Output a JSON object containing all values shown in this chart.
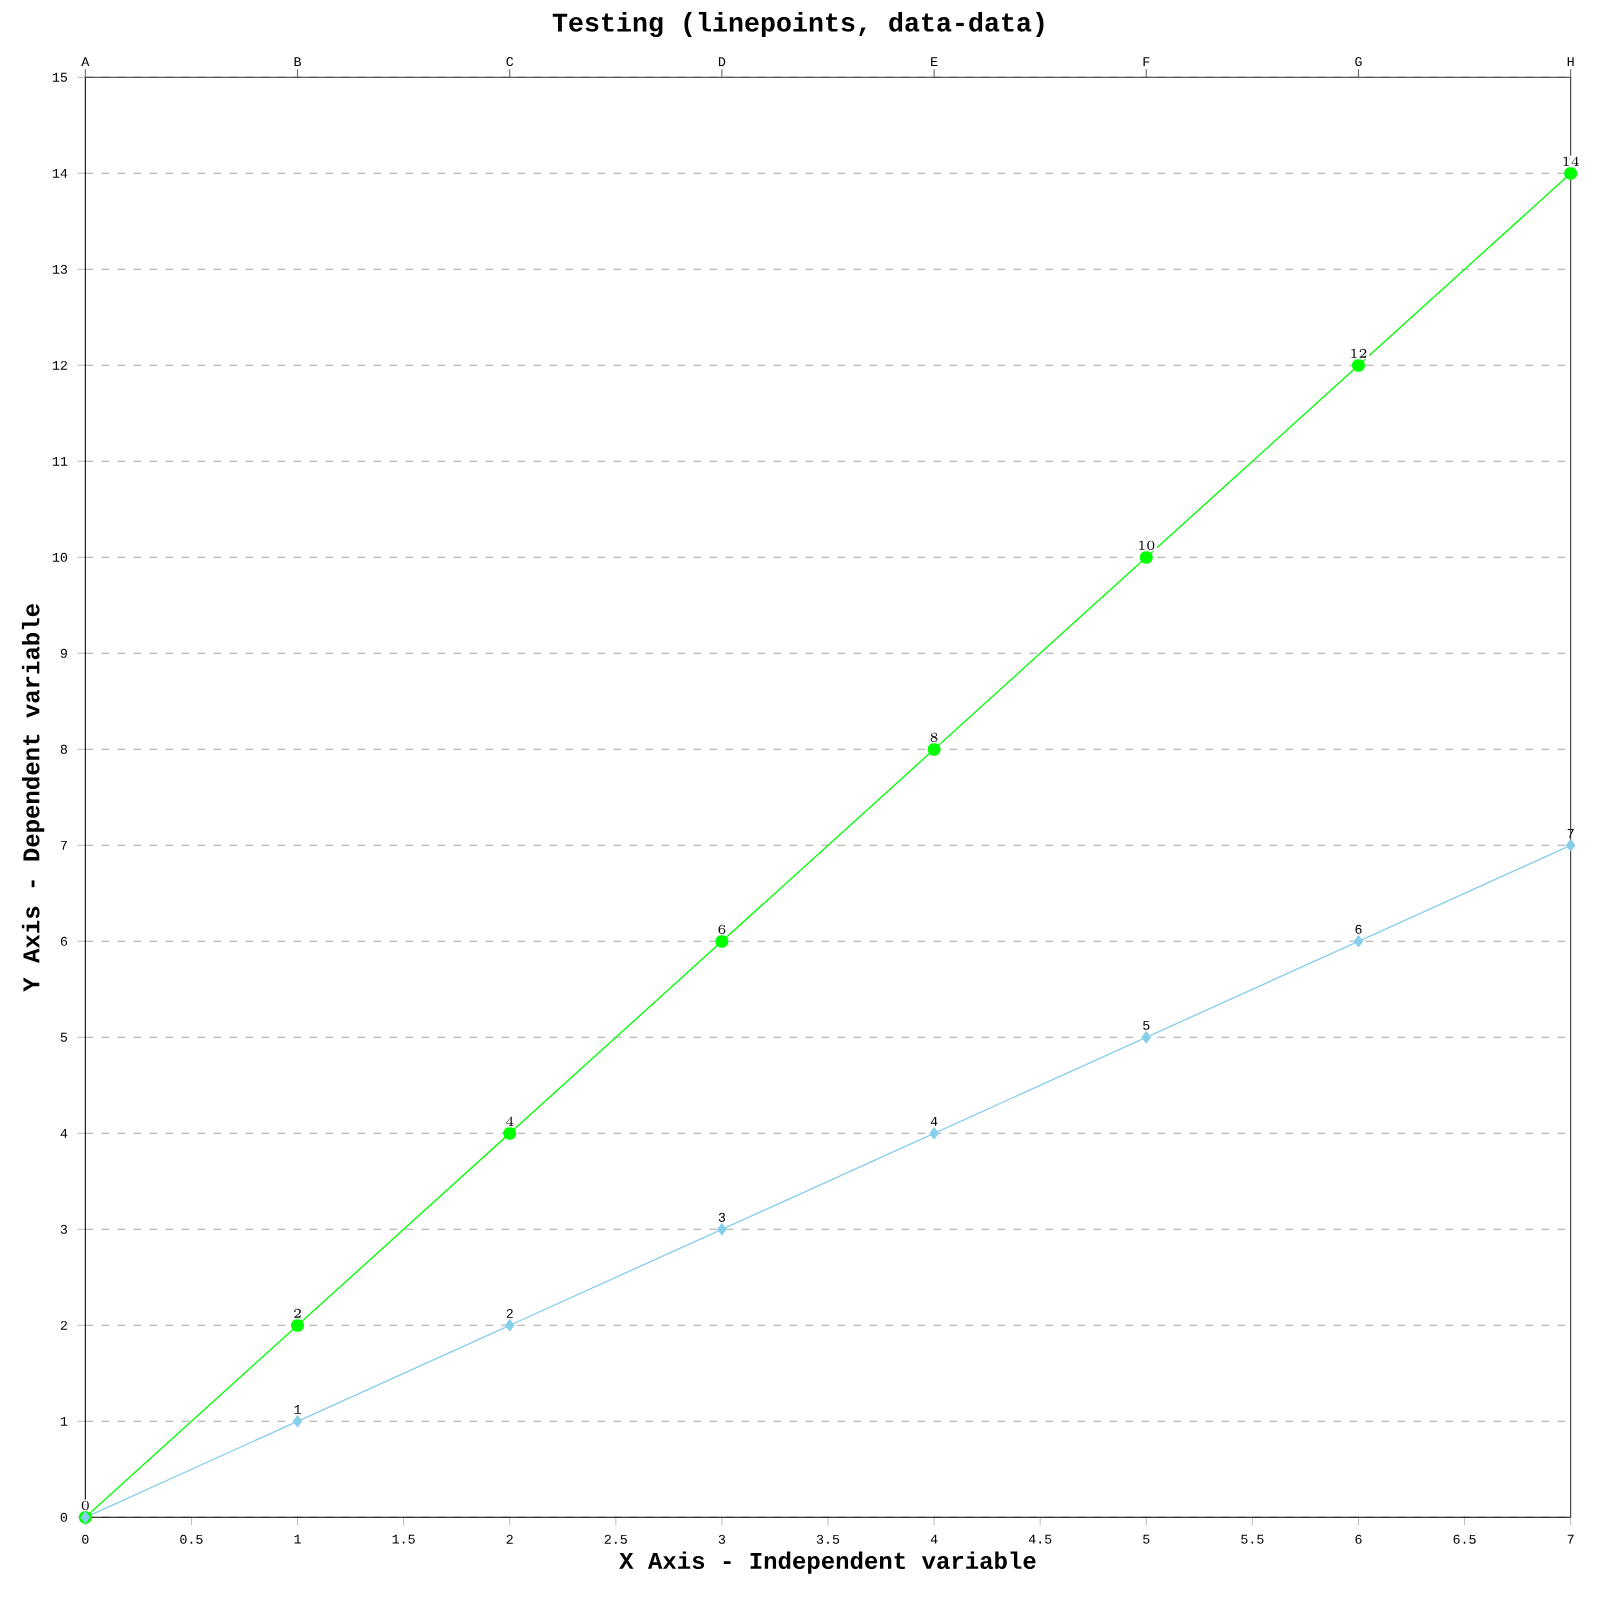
{
  "chart_data": {
    "type": "line",
    "title": "Testing (linepoints, data-data)",
    "xlabel": "X Axis - Independent variable",
    "ylabel": "Y Axis - Dependent variable",
    "x": [
      0,
      1,
      2,
      3,
      4,
      5,
      6,
      7
    ],
    "series": [
      {
        "color": "#00ff00",
        "marker": "circle",
        "values": [
          0,
          2,
          4,
          6,
          8,
          10,
          12,
          14
        ]
      },
      {
        "color": "#87ceeb",
        "marker": "diamond",
        "values": [
          0,
          1,
          2,
          3,
          4,
          5,
          6,
          7
        ],
        "value_labels": [
          null,
          "1",
          "2",
          "3",
          "4",
          "5",
          "6",
          "7"
        ]
      }
    ],
    "xlim": [
      0,
      7
    ],
    "ylim": [
      0,
      15
    ],
    "xticks": [
      0,
      0.5,
      1,
      1.5,
      2,
      2.5,
      3,
      3.5,
      4,
      4.5,
      5,
      5.5,
      6,
      6.5,
      7
    ],
    "yticks": [
      0,
      1,
      2,
      3,
      4,
      5,
      6,
      7,
      8,
      9,
      10,
      11,
      12,
      13,
      14,
      15
    ],
    "annotations": [
      "A",
      "B",
      "C",
      "D",
      "E",
      "F",
      "G",
      "H"
    ],
    "grid": "y",
    "data_labels": true,
    "line_style": "solid"
  }
}
